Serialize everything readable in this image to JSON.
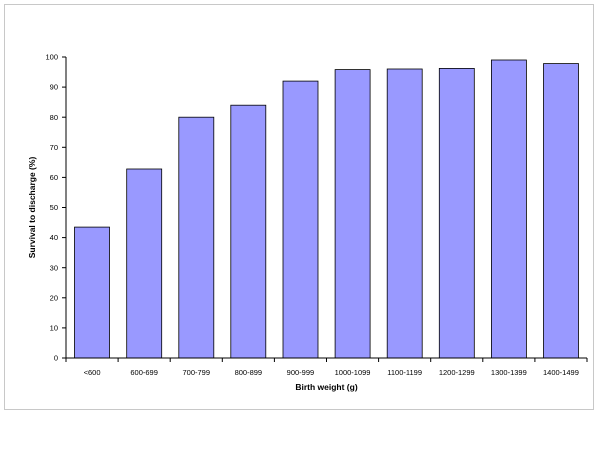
{
  "chart_data": {
    "type": "bar",
    "title": "",
    "xlabel": "Birth weight (g)",
    "ylabel": "Survival to discharge (%)",
    "categories": [
      "<600",
      "600-699",
      "700-799",
      "800-899",
      "900-999",
      "1000-1099",
      "1100-1199",
      "1200-1299",
      "1300-1399",
      "1400-1499"
    ],
    "values": [
      43.5,
      62.8,
      80.0,
      84.0,
      92.0,
      95.8,
      96.0,
      96.2,
      99.0,
      97.8
    ],
    "ylim": [
      0,
      100
    ],
    "yticks": [
      0,
      10,
      20,
      30,
      40,
      50,
      60,
      70,
      80,
      90,
      100
    ],
    "grid": false,
    "legend": "none",
    "colors": {
      "bar_fill": "#9999ff",
      "bar_stroke": "#000000",
      "axis": "#000000"
    }
  }
}
